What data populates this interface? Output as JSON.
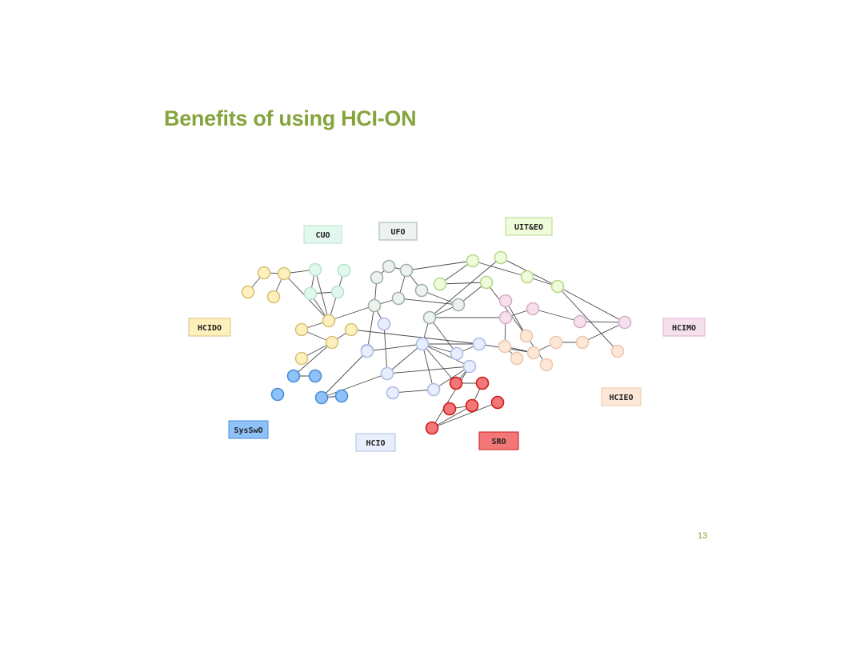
{
  "slide": {
    "title": "Benefits of using HCI-ON",
    "page_number": "13"
  },
  "ontologies": [
    {
      "id": "cuo",
      "label": "CUO",
      "fill": "#e2f8ee",
      "stroke": "#b7e3cb"
    },
    {
      "id": "ufo",
      "label": "UFO",
      "fill": "#eef2ef",
      "stroke": "#9fb3a7"
    },
    {
      "id": "uite",
      "label": "UIT&EO",
      "fill": "#f0fbd9",
      "stroke": "#b6d98a"
    },
    {
      "id": "hcido",
      "label": "HCIDO",
      "fill": "#fdf0bc",
      "stroke": "#d8c27a"
    },
    {
      "id": "hcimo",
      "label": "HCIMO",
      "fill": "#f5e0ec",
      "stroke": "#d7afc8"
    },
    {
      "id": "hcieo",
      "label": "HCIEO",
      "fill": "#fde7d6",
      "stroke": "#ecc7ad"
    },
    {
      "id": "sysswo",
      "label": "SysSwO",
      "fill": "#8ec2f8",
      "stroke": "#4a8fd8"
    },
    {
      "id": "hcio",
      "label": "HCIO",
      "fill": "#e9eefc",
      "stroke": "#aebde6"
    },
    {
      "id": "sro",
      "label": "SRO",
      "fill": "#f27777",
      "stroke": "#d11a1a"
    }
  ],
  "nodes": [
    {
      "id": "n1",
      "group": "hcido"
    },
    {
      "id": "n2",
      "group": "hcido"
    },
    {
      "id": "n3",
      "group": "hcido"
    },
    {
      "id": "n4",
      "group": "hcido"
    },
    {
      "id": "n5",
      "group": "hcido"
    },
    {
      "id": "n6",
      "group": "hcido"
    },
    {
      "id": "n7",
      "group": "hcido"
    },
    {
      "id": "n8",
      "group": "hcido"
    },
    {
      "id": "n9",
      "group": "hcido"
    },
    {
      "id": "n10",
      "group": "cuo"
    },
    {
      "id": "n11",
      "group": "cuo"
    },
    {
      "id": "n12",
      "group": "cuo"
    },
    {
      "id": "n13",
      "group": "cuo"
    },
    {
      "id": "n14",
      "group": "ufo"
    },
    {
      "id": "n15",
      "group": "ufo"
    },
    {
      "id": "n16",
      "group": "ufo"
    },
    {
      "id": "n17",
      "group": "ufo"
    },
    {
      "id": "n18",
      "group": "ufo"
    },
    {
      "id": "n19",
      "group": "ufo"
    },
    {
      "id": "n20",
      "group": "ufo"
    },
    {
      "id": "n21",
      "group": "ufo"
    },
    {
      "id": "n22",
      "group": "uite"
    },
    {
      "id": "n23",
      "group": "uite"
    },
    {
      "id": "n24",
      "group": "uite"
    },
    {
      "id": "n25",
      "group": "uite"
    },
    {
      "id": "n26",
      "group": "uite"
    },
    {
      "id": "n27",
      "group": "uite"
    },
    {
      "id": "n28",
      "group": "hcimo"
    },
    {
      "id": "n29",
      "group": "hcimo"
    },
    {
      "id": "n30",
      "group": "hcimo"
    },
    {
      "id": "n31",
      "group": "hcimo"
    },
    {
      "id": "n32",
      "group": "hcimo"
    },
    {
      "id": "n33",
      "group": "hcieo"
    },
    {
      "id": "n34",
      "group": "hcieo"
    },
    {
      "id": "n35",
      "group": "hcieo"
    },
    {
      "id": "n36",
      "group": "hcieo"
    },
    {
      "id": "n37",
      "group": "hcieo"
    },
    {
      "id": "n38",
      "group": "hcieo"
    },
    {
      "id": "n39",
      "group": "hcieo"
    },
    {
      "id": "n40",
      "group": "hcieo"
    },
    {
      "id": "n41",
      "group": "sysswo"
    },
    {
      "id": "n42",
      "group": "sysswo"
    },
    {
      "id": "n43",
      "group": "sysswo"
    },
    {
      "id": "n44",
      "group": "sysswo"
    },
    {
      "id": "n45",
      "group": "sysswo"
    },
    {
      "id": "n46",
      "group": "hcio"
    },
    {
      "id": "n47",
      "group": "hcio"
    },
    {
      "id": "n48",
      "group": "hcio"
    },
    {
      "id": "n49",
      "group": "hcio"
    },
    {
      "id": "n50",
      "group": "hcio"
    },
    {
      "id": "n51",
      "group": "hcio"
    },
    {
      "id": "n52",
      "group": "hcio"
    },
    {
      "id": "n53",
      "group": "hcio"
    },
    {
      "id": "n54",
      "group": "hcio"
    },
    {
      "id": "n55",
      "group": "hcio"
    },
    {
      "id": "n56",
      "group": "sro"
    },
    {
      "id": "n57",
      "group": "sro"
    },
    {
      "id": "n58",
      "group": "sro"
    },
    {
      "id": "n59",
      "group": "sro"
    },
    {
      "id": "n60",
      "group": "sro"
    },
    {
      "id": "n61",
      "group": "sro"
    }
  ],
  "edges": [
    [
      "n1",
      "n2"
    ],
    [
      "n2",
      "n4"
    ],
    [
      "n3",
      "n1"
    ],
    [
      "n2",
      "n10"
    ],
    [
      "n2",
      "n7"
    ],
    [
      "n10",
      "n7"
    ],
    [
      "n10",
      "n12"
    ],
    [
      "n12",
      "n7"
    ],
    [
      "n12",
      "n13"
    ],
    [
      "n11",
      "n13"
    ],
    [
      "n13",
      "n7"
    ],
    [
      "n7",
      "n5"
    ],
    [
      "n7",
      "n19"
    ],
    [
      "n5",
      "n8"
    ],
    [
      "n8",
      "n9"
    ],
    [
      "n9",
      "n53"
    ],
    [
      "n6",
      "n8"
    ],
    [
      "n8",
      "n41"
    ],
    [
      "n14",
      "n15"
    ],
    [
      "n14",
      "n16"
    ],
    [
      "n15",
      "n19"
    ],
    [
      "n16",
      "n18"
    ],
    [
      "n18",
      "n19"
    ],
    [
      "n18",
      "n21"
    ],
    [
      "n19",
      "n46"
    ],
    [
      "n19",
      "n50"
    ],
    [
      "n16",
      "n17"
    ],
    [
      "n17",
      "n21"
    ],
    [
      "n16",
      "n23"
    ],
    [
      "n23",
      "n22"
    ],
    [
      "n23",
      "n26"
    ],
    [
      "n22",
      "n24"
    ],
    [
      "n24",
      "n21"
    ],
    [
      "n21",
      "n20"
    ],
    [
      "n20",
      "n25"
    ],
    [
      "n20",
      "n54"
    ],
    [
      "n20",
      "n30"
    ],
    [
      "n25",
      "n27"
    ],
    [
      "n27",
      "n26"
    ],
    [
      "n27",
      "n32"
    ],
    [
      "n27",
      "n40"
    ],
    [
      "n29",
      "n31"
    ],
    [
      "n31",
      "n32"
    ],
    [
      "n30",
      "n29"
    ],
    [
      "n30",
      "n34"
    ],
    [
      "n28",
      "n33"
    ],
    [
      "n33",
      "n38"
    ],
    [
      "n34",
      "n35"
    ],
    [
      "n34",
      "n36"
    ],
    [
      "n35",
      "n37"
    ],
    [
      "n37",
      "n39"
    ],
    [
      "n35",
      "n53"
    ],
    [
      "n39",
      "n32"
    ],
    [
      "n54",
      "n53"
    ],
    [
      "n53",
      "n51"
    ],
    [
      "n51",
      "n20"
    ],
    [
      "n51",
      "n50"
    ],
    [
      "n51",
      "n52"
    ],
    [
      "n51",
      "n54"
    ],
    [
      "n51",
      "n56"
    ],
    [
      "n51",
      "n48"
    ],
    [
      "n51",
      "n55"
    ],
    [
      "n50",
      "n44"
    ],
    [
      "n46",
      "n48"
    ],
    [
      "n48",
      "n44"
    ],
    [
      "n48",
      "n55"
    ],
    [
      "n44",
      "n45"
    ],
    [
      "n41",
      "n42"
    ],
    [
      "n52",
      "n55"
    ],
    [
      "n55",
      "n56"
    ],
    [
      "n55",
      "n61"
    ],
    [
      "n56",
      "n57"
    ],
    [
      "n57",
      "n60"
    ],
    [
      "n60",
      "n59"
    ],
    [
      "n61",
      "n58"
    ],
    [
      "n52",
      "n49"
    ],
    [
      "n61",
      "n60"
    ],
    [
      "n24",
      "n33"
    ]
  ]
}
